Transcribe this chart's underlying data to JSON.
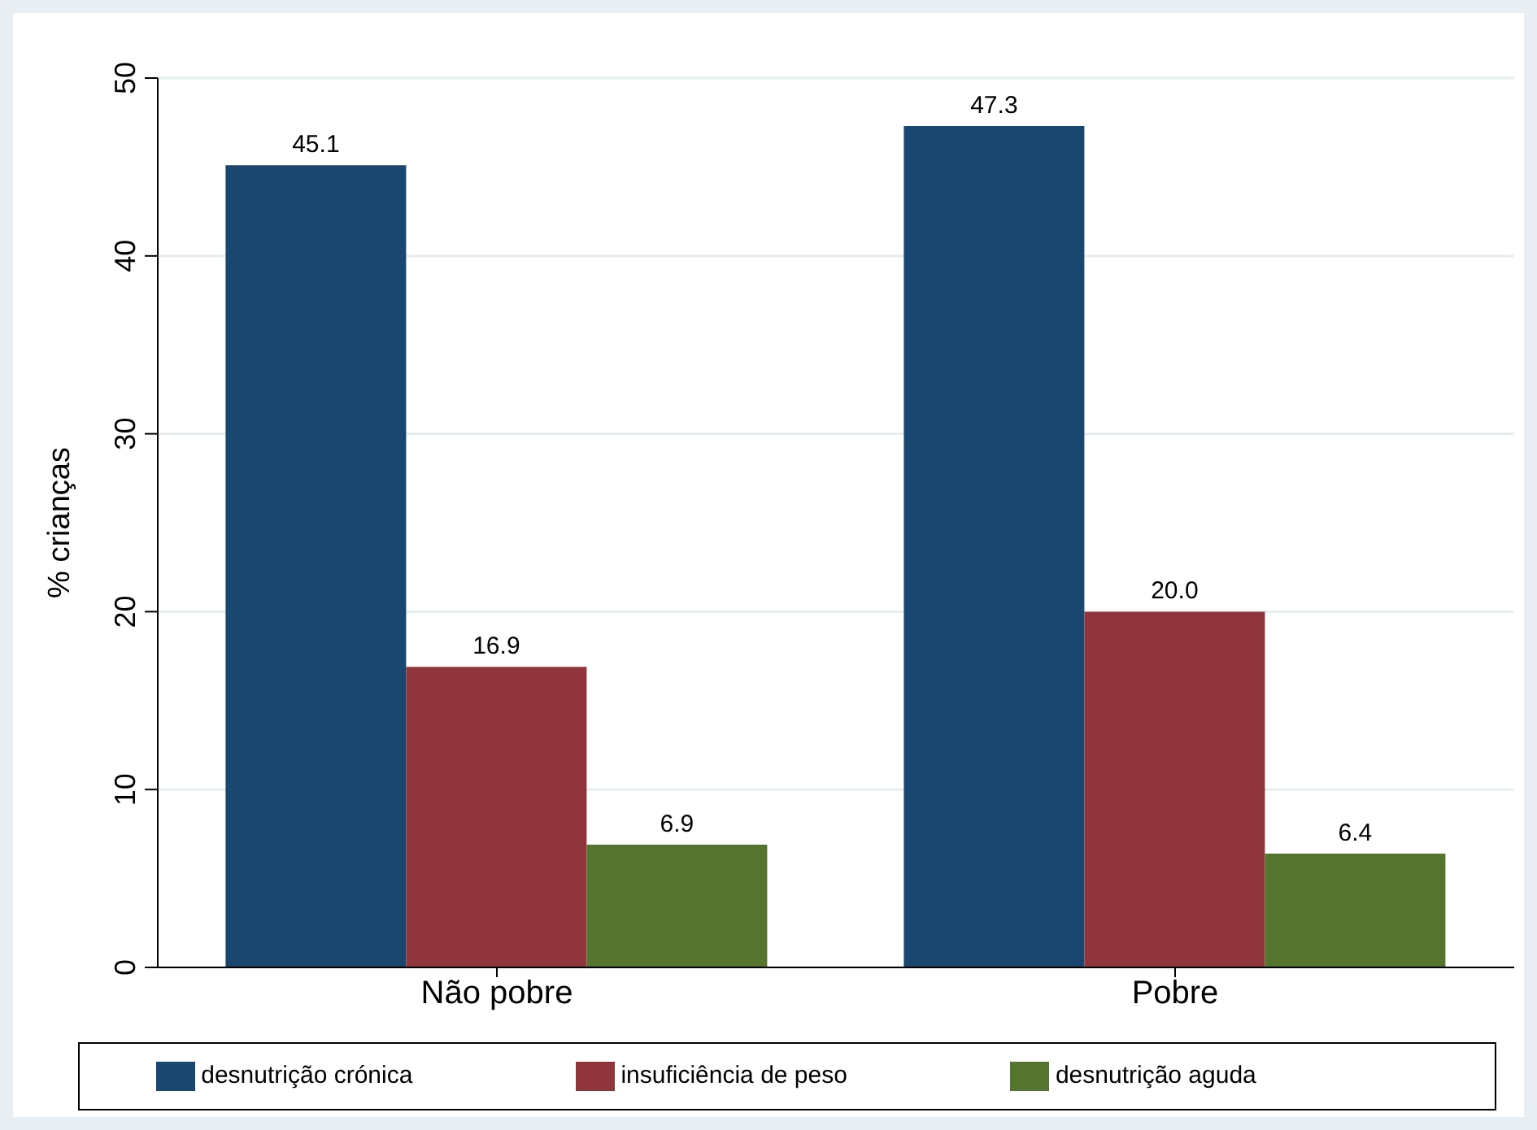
{
  "chart_data": {
    "type": "bar",
    "ylabel": "% crianças",
    "categories": [
      "Não pobre",
      "Pobre"
    ],
    "series": [
      {
        "name": "desnutrição crónica",
        "color": "#1a476f",
        "values": [
          45.1,
          47.3
        ],
        "value_labels": [
          "45.1",
          "47.3"
        ]
      },
      {
        "name": "insuficiência de peso",
        "color": "#90353b",
        "values": [
          16.9,
          20.0
        ],
        "value_labels": [
          "16.9",
          "20.0"
        ]
      },
      {
        "name": "desnutrição aguda",
        "color": "#55752f",
        "values": [
          6.9,
          6.4
        ],
        "value_labels": [
          "6.9",
          "6.4"
        ]
      }
    ],
    "ylim": [
      0,
      50
    ],
    "yticks": [
      0,
      10,
      20,
      30,
      40,
      50
    ],
    "grid": "y",
    "legend": "bottom"
  }
}
